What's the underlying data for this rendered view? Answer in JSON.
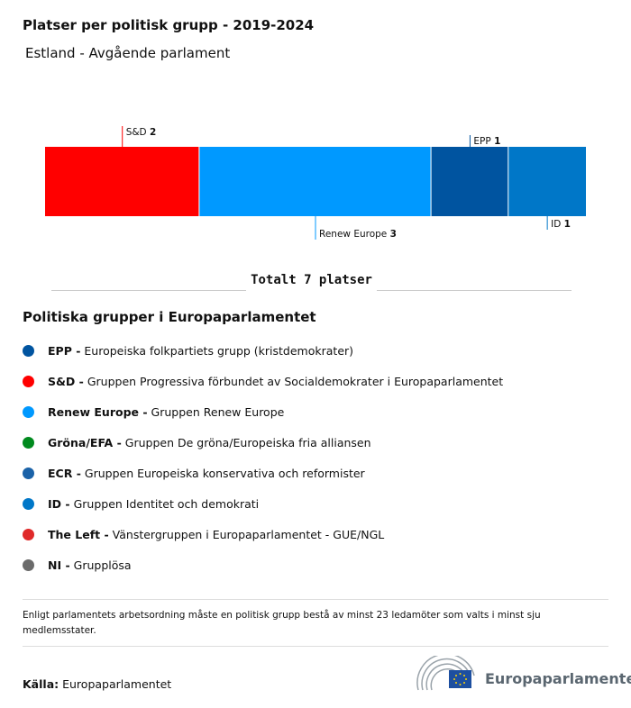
{
  "header": {
    "title": "Platser per politisk grupp - 2019-2024",
    "subtitle": "Estland - Avgående parlament"
  },
  "chart_data": {
    "type": "stacked-bar",
    "total": 7,
    "total_label": "Totalt 7 platser",
    "segments": [
      {
        "name": "S&D",
        "value": 2,
        "color": "#ff0000",
        "label_pos": "top"
      },
      {
        "name": "Renew Europe",
        "value": 3,
        "color": "#0099ff",
        "label_pos": "bottom"
      },
      {
        "name": "EPP",
        "value": 1,
        "color": "#0054a0",
        "label_pos": "top"
      },
      {
        "name": "ID",
        "value": 1,
        "color": "#0077c8",
        "label_pos": "bottom"
      }
    ]
  },
  "legend": {
    "title": "Politiska grupper i Europaparlamentet",
    "items": [
      {
        "abbr": "EPP -",
        "name": "Europeiska folkpartiets grupp (kristdemokrater)",
        "color": "#0054a0"
      },
      {
        "abbr": "S&D -",
        "name": "Gruppen Progressiva förbundet av Socialdemokrater i Europaparlamentet",
        "color": "#ff0000"
      },
      {
        "abbr": "Renew Europe -",
        "name": "Gruppen Renew Europe",
        "color": "#0099ff"
      },
      {
        "abbr": "Gröna/EFA -",
        "name": "Gruppen De gröna/Europeiska fria alliansen",
        "color": "#008a1e"
      },
      {
        "abbr": "ECR -",
        "name": "Gruppen Europeiska konservativa och reformister",
        "color": "#1a62a8"
      },
      {
        "abbr": "ID -",
        "name": "Gruppen Identitet och demokrati",
        "color": "#0077c8"
      },
      {
        "abbr": "The Left -",
        "name": "Vänstergruppen i Europaparlamentet - GUE/NGL",
        "color": "#e02a2a"
      },
      {
        "abbr": "NI -",
        "name": "Grupplösa",
        "color": "#6b6b6b"
      }
    ]
  },
  "note": "Enligt parlamentets arbetsordning måste en politisk grupp bestå av minst 23 ledamöter som valts i minst sju medlemsstater.",
  "source": {
    "label": "Källa:",
    "value": "Europaparlamentet"
  },
  "logo": {
    "text": "Europaparlamentet"
  }
}
